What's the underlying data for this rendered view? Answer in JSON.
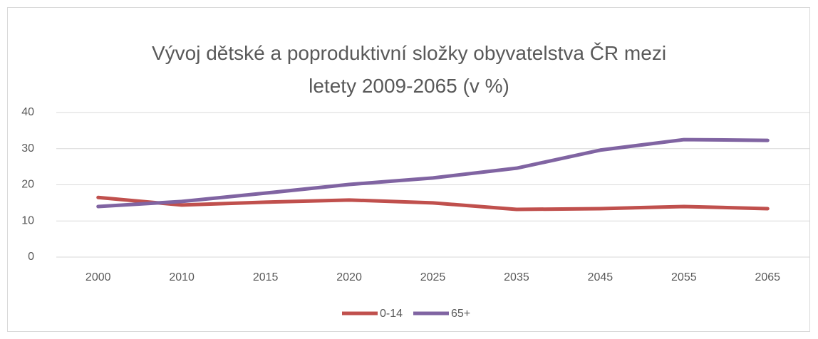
{
  "chart_data": {
    "type": "line",
    "title": "Vývoj dětské a poproduktivní složky obyvatelstva ČR mezi letety 2009-2065 (v %)",
    "categories": [
      "2000",
      "2010",
      "2015",
      "2020",
      "2025",
      "2035",
      "2045",
      "2055",
      "2065"
    ],
    "series": [
      {
        "name": "0-14",
        "color": "#c0504d",
        "values": [
          16.5,
          14.4,
          15.2,
          15.8,
          15.0,
          13.2,
          13.4,
          14.0,
          13.4
        ]
      },
      {
        "name": "65+",
        "color": "#8064a2",
        "values": [
          14.0,
          15.4,
          17.7,
          20.1,
          21.9,
          24.6,
          29.6,
          32.5,
          32.3
        ]
      }
    ],
    "ylim": [
      0,
      40
    ],
    "yticks": [
      0,
      10,
      20,
      30,
      40
    ],
    "grid": true,
    "legend": "bottom"
  }
}
